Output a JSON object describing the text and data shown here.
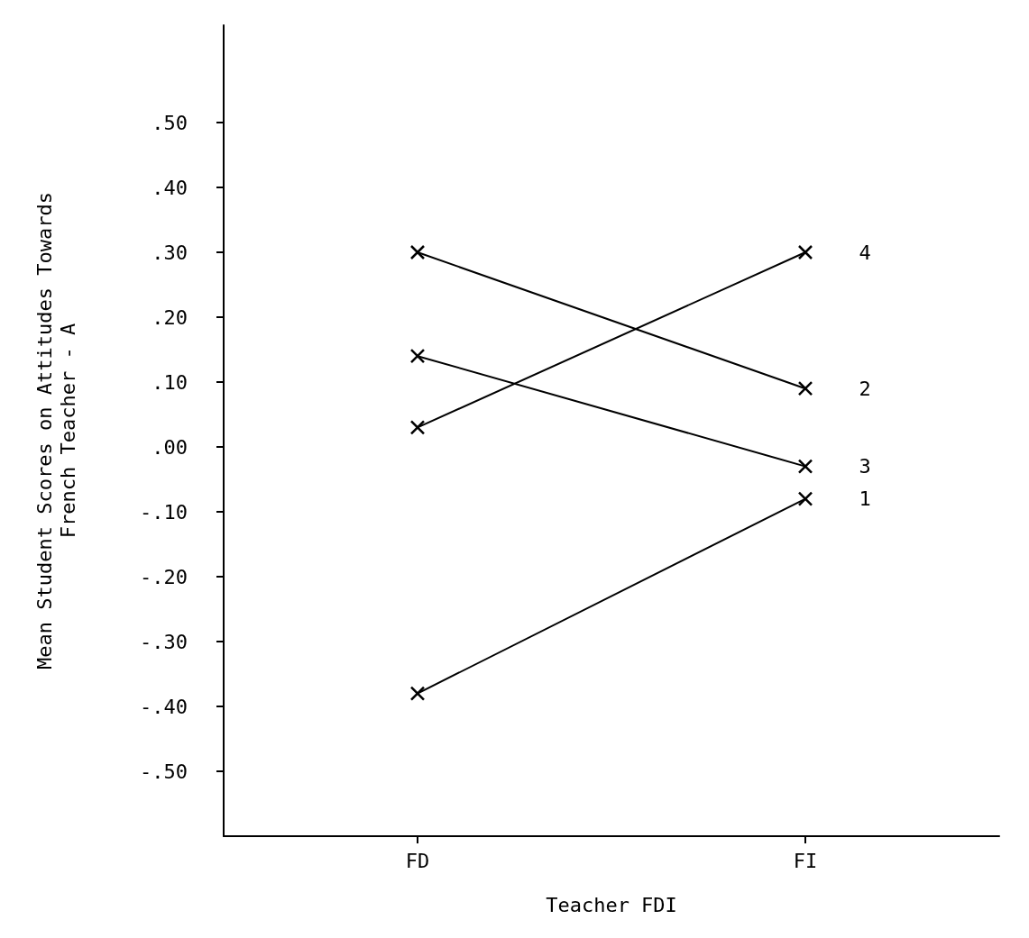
{
  "chart_data": {
    "type": "line",
    "xlabel": "Teacher FDI",
    "ylabel": "Mean Student Scores on Attitudes Towards\nFrench Teacher - A",
    "categories": [
      "FD",
      "FI"
    ],
    "series": [
      {
        "name": "1",
        "color": "#000000",
        "values": [
          -0.38,
          -0.08
        ]
      },
      {
        "name": "2",
        "color": "#000000",
        "values": [
          0.3,
          0.09
        ]
      },
      {
        "name": "3",
        "color": "#000000",
        "values": [
          0.14,
          -0.03
        ]
      },
      {
        "name": "4",
        "color": "#000000",
        "values": [
          0.03,
          0.3
        ]
      }
    ],
    "ylim": [
      -0.6,
      0.65
    ],
    "yticks": [
      {
        "value": -0.5,
        "label": "-.50"
      },
      {
        "value": -0.4,
        "label": "-.40"
      },
      {
        "value": -0.3,
        "label": "-.30"
      },
      {
        "value": -0.2,
        "label": "-.20"
      },
      {
        "value": -0.1,
        "label": "-.10"
      },
      {
        "value": 0,
        "label": ".00"
      },
      {
        "value": 0.1,
        "label": ".10"
      },
      {
        "value": 0.2,
        "label": ".20"
      },
      {
        "value": 0.3,
        "label": ".30"
      },
      {
        "value": 0.4,
        "label": ".40"
      },
      {
        "value": 0.5,
        "label": ".50"
      }
    ],
    "marker": "cross",
    "line_style": "solid",
    "grid": false,
    "legend": false
  }
}
